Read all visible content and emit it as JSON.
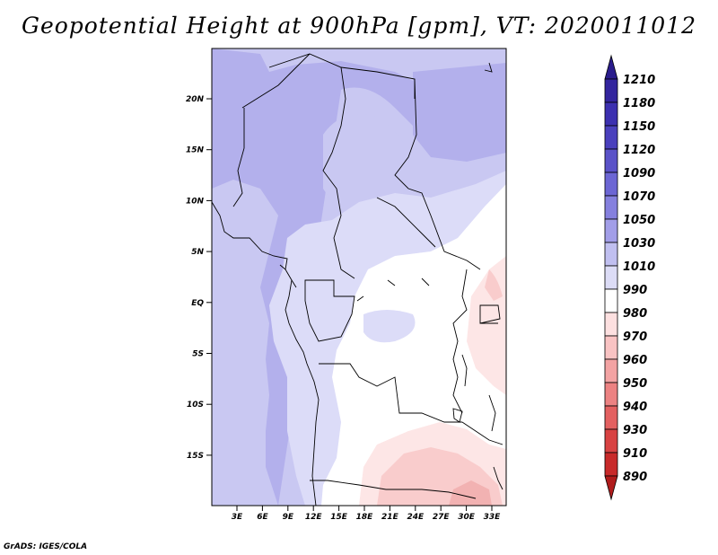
{
  "title": "Geopotential Height at 900hPa [gpm], VT: 2020011012",
  "credit": "GrADS: IGES/COLA",
  "axes": {
    "x_ticks": [
      "3E",
      "6E",
      "9E",
      "12E",
      "15E",
      "18E",
      "21E",
      "24E",
      "27E",
      "30E",
      "33E"
    ],
    "y_ticks": [
      "20N",
      "15N",
      "10N",
      "5N",
      "EQ",
      "5S",
      "10S",
      "15S"
    ]
  },
  "colorbar": {
    "levels": [
      "1210",
      "1180",
      "1150",
      "1120",
      "1090",
      "1070",
      "1050",
      "1030",
      "1010",
      "990",
      "980",
      "970",
      "960",
      "950",
      "940",
      "930",
      "910",
      "890"
    ],
    "colors": [
      "#2a1c8c",
      "#33259e",
      "#3c30b0",
      "#4a40bd",
      "#5a52c8",
      "#6c66d4",
      "#8580de",
      "#a29ee8",
      "#c0bff0",
      "#dcdcf6",
      "#ffffff",
      "#fde0e0",
      "#f9c3c3",
      "#f3a3a3",
      "#ec8282",
      "#e36060",
      "#d84242",
      "#c82a2a",
      "#b01c1c"
    ]
  },
  "field_colors": {
    "band_1050": "#b3b0ec",
    "band_1030": "#c9c8f2",
    "band_1010": "#dcdcf8",
    "band_990": "#ffffff",
    "band_980": "#fde6e6",
    "band_970": "#f9cccc",
    "band_960": "#f2b2b2"
  }
}
